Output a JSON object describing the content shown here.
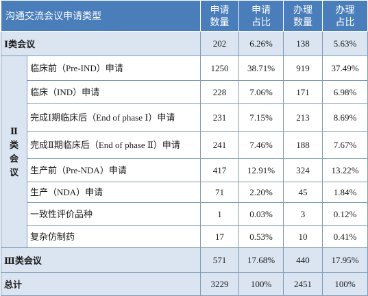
{
  "header": {
    "type": "沟通交流会议申请类型",
    "apply_count": "申请\n数量",
    "apply_ratio": "申请\n占比",
    "handle_count": "办理\n数量",
    "handle_ratio": "办理\n占比"
  },
  "rows": {
    "class1": {
      "label": "Ⅰ类会议",
      "a": "202",
      "b": "6.26%",
      "c": "138",
      "d": "5.63%"
    },
    "class2_group_label": "Ⅱ\n类\n会\n议",
    "class2": [
      {
        "label": "临床前（Pre-IND）申请",
        "a": "1250",
        "b": "38.71%",
        "c": "919",
        "d": "37.49%"
      },
      {
        "label": "临床（IND）申请",
        "a": "228",
        "b": "7.06%",
        "c": "171",
        "d": "6.98%"
      },
      {
        "label": "完成Ⅰ期临床后（End of phase Ⅰ）申请",
        "a": "231",
        "b": "7.15%",
        "c": "213",
        "d": "8.69%"
      },
      {
        "label": "完成Ⅱ期临床后（End of phase Ⅱ）申请",
        "a": "241",
        "b": "7.46%",
        "c": "188",
        "d": "7.67%"
      },
      {
        "label": "生产前（Pre-NDA）申请",
        "a": "417",
        "b": "12.91%",
        "c": "324",
        "d": "13.22%"
      },
      {
        "label": "生产（NDA）申请",
        "a": "71",
        "b": "2.20%",
        "c": "45",
        "d": "1.84%"
      },
      {
        "label": "一致性评价品种",
        "a": "1",
        "b": "0.03%",
        "c": "3",
        "d": "0.12%"
      },
      {
        "label": "复杂仿制药",
        "a": "17",
        "b": "0.53%",
        "c": "10",
        "d": "0.41%"
      }
    ],
    "class3": {
      "label": "Ⅲ类会议",
      "a": "571",
      "b": "17.68%",
      "c": "440",
      "d": "17.95%"
    },
    "total": {
      "label": "总计",
      "a": "3229",
      "b": "100%",
      "c": "2451",
      "d": "100%"
    }
  }
}
